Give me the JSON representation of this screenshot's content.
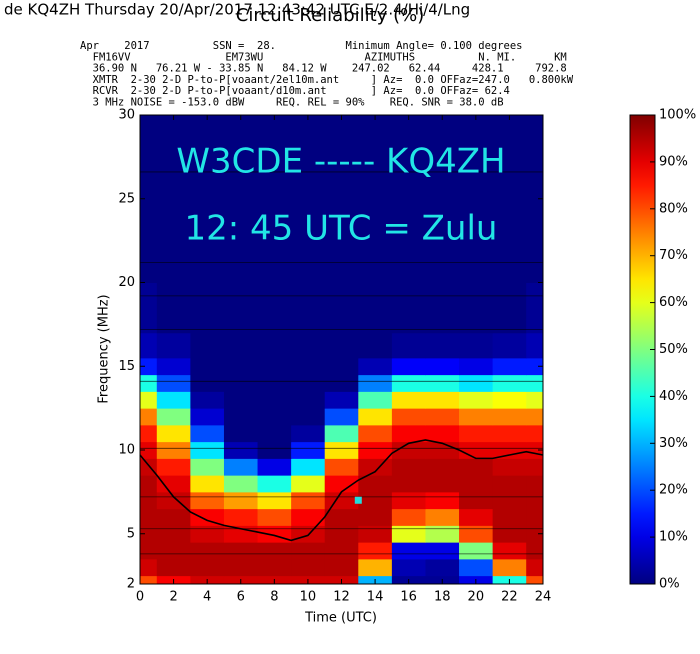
{
  "chart_data": {
    "type": "heatmap",
    "title": "Circuit Reliability (%)",
    "top_line": "de KQ4ZH  Thursday 20/Apr/2017  12:43:42 UTC  E/2.4/Hi/4/Lng",
    "header_lines": [
      "Apr    2017          SSN =  28.           Minimum Angle= 0.100 degrees",
      "  FM16VV               EM73WU                AZIMUTHS          N. MI.      KM",
      "  36.90 N   76.21 W - 33.85 N   84.12 W    247.02   62.44     428.1     792.8",
      "  XMTR  2-30 2-D P-to-P[voaant/2el10m.ant     ] Az=  0.0 OFFaz=247.0   0.800kW",
      "  RCVR  2-30 2-D P-to-P[voaant/d10m.ant       ] Az=  0.0 OFFaz= 62.4",
      "  3 MHz NOISE = -153.0 dBW     REQ. REL = 90%    REQ. SNR = 38.0 dB"
    ],
    "annotations": [
      "W3CDE  -----  KQ4ZH",
      "12: 45 UTC = Zulu"
    ],
    "x_label": "Time (UTC)",
    "y_label": "Frequency (MHz)",
    "xlim": [
      0,
      24
    ],
    "ylim": [
      2,
      30
    ],
    "xticks": [
      0,
      2,
      4,
      6,
      8,
      10,
      12,
      14,
      16,
      18,
      20,
      22,
      24
    ],
    "yticks": [
      2,
      5,
      10,
      15,
      20,
      25,
      30
    ],
    "grid_lines": [
      3.8,
      5.3,
      7.2,
      10.1,
      14.1,
      17.2,
      19.2,
      21.2,
      26.6
    ],
    "x": [
      0,
      2,
      4,
      6,
      8,
      10,
      12,
      14,
      16,
      18,
      20,
      22,
      24
    ],
    "y": [
      2,
      3,
      4,
      5,
      6,
      7,
      8,
      9,
      10,
      11,
      12,
      13,
      14,
      15,
      16,
      18,
      22,
      26,
      30
    ],
    "z": [
      [
        80,
        88,
        92,
        92,
        92,
        92,
        92,
        30,
        2,
        2,
        10,
        40,
        80
      ],
      [
        92,
        95,
        95,
        95,
        95,
        95,
        95,
        70,
        5,
        3,
        20,
        75,
        92
      ],
      [
        95,
        95,
        95,
        95,
        95,
        95,
        95,
        85,
        10,
        10,
        50,
        90,
        95
      ],
      [
        95,
        95,
        92,
        90,
        88,
        92,
        95,
        93,
        60,
        55,
        80,
        95,
        95
      ],
      [
        95,
        95,
        88,
        85,
        80,
        88,
        95,
        95,
        80,
        75,
        90,
        95,
        95
      ],
      [
        95,
        93,
        78,
        72,
        65,
        80,
        92,
        95,
        90,
        88,
        95,
        95,
        95
      ],
      [
        95,
        90,
        65,
        50,
        40,
        60,
        88,
        95,
        95,
        95,
        95,
        95,
        95
      ],
      [
        93,
        85,
        50,
        25,
        10,
        35,
        80,
        93,
        95,
        95,
        95,
        93,
        93
      ],
      [
        90,
        75,
        35,
        5,
        0,
        15,
        65,
        88,
        93,
        93,
        90,
        90,
        90
      ],
      [
        85,
        65,
        20,
        0,
        0,
        3,
        45,
        80,
        88,
        88,
        85,
        85,
        85
      ],
      [
        75,
        50,
        8,
        0,
        0,
        0,
        20,
        65,
        80,
        80,
        75,
        75,
        75
      ],
      [
        60,
        35,
        3,
        0,
        0,
        0,
        5,
        45,
        65,
        65,
        60,
        62,
        60
      ],
      [
        40,
        20,
        0,
        0,
        0,
        0,
        0,
        25,
        40,
        40,
        35,
        40,
        40
      ],
      [
        15,
        8,
        0,
        0,
        0,
        0,
        0,
        5,
        12,
        12,
        10,
        15,
        15
      ],
      [
        5,
        3,
        0,
        0,
        0,
        0,
        0,
        0,
        2,
        2,
        2,
        3,
        5
      ],
      [
        2,
        0,
        0,
        0,
        0,
        0,
        0,
        0,
        0,
        0,
        0,
        0,
        2
      ],
      [
        0,
        0,
        0,
        0,
        0,
        0,
        0,
        0,
        0,
        0,
        0,
        0,
        0
      ],
      [
        0,
        0,
        0,
        0,
        0,
        0,
        0,
        0,
        0,
        0,
        0,
        0,
        0
      ],
      [
        0,
        0,
        0,
        0,
        0,
        0,
        0,
        0,
        0,
        0,
        0,
        0,
        0
      ]
    ],
    "line": {
      "color": "#000000",
      "x": [
        0,
        1,
        2,
        3,
        4,
        5,
        6,
        7,
        8,
        9,
        10,
        11,
        12,
        13,
        14,
        15,
        16,
        17,
        18,
        19,
        20,
        21,
        22,
        23,
        24
      ],
      "values": [
        9.7,
        8.5,
        7.2,
        6.3,
        5.8,
        5.5,
        5.3,
        5.1,
        4.9,
        4.6,
        4.9,
        6.0,
        7.5,
        8.2,
        8.7,
        9.8,
        10.4,
        10.6,
        10.4,
        10.0,
        9.5,
        9.5,
        9.7,
        9.9,
        9.7
      ]
    },
    "marker": {
      "x": 13,
      "y": 7,
      "color": "#22dddd"
    },
    "colorbar": {
      "lim": [
        0,
        100
      ],
      "ticks": [
        {
          "value": 0,
          "label": "0%"
        },
        {
          "value": 10,
          "label": "10%"
        },
        {
          "value": 20,
          "label": "20%"
        },
        {
          "value": 30,
          "label": "30%"
        },
        {
          "value": 40,
          "label": "40%"
        },
        {
          "value": 50,
          "label": "50%"
        },
        {
          "value": 60,
          "label": "60%"
        },
        {
          "value": 70,
          "label": "70%"
        },
        {
          "value": 80,
          "label": "80%"
        },
        {
          "value": 90,
          "label": "90%"
        },
        {
          "value": 100,
          "label": "100%"
        }
      ]
    }
  }
}
